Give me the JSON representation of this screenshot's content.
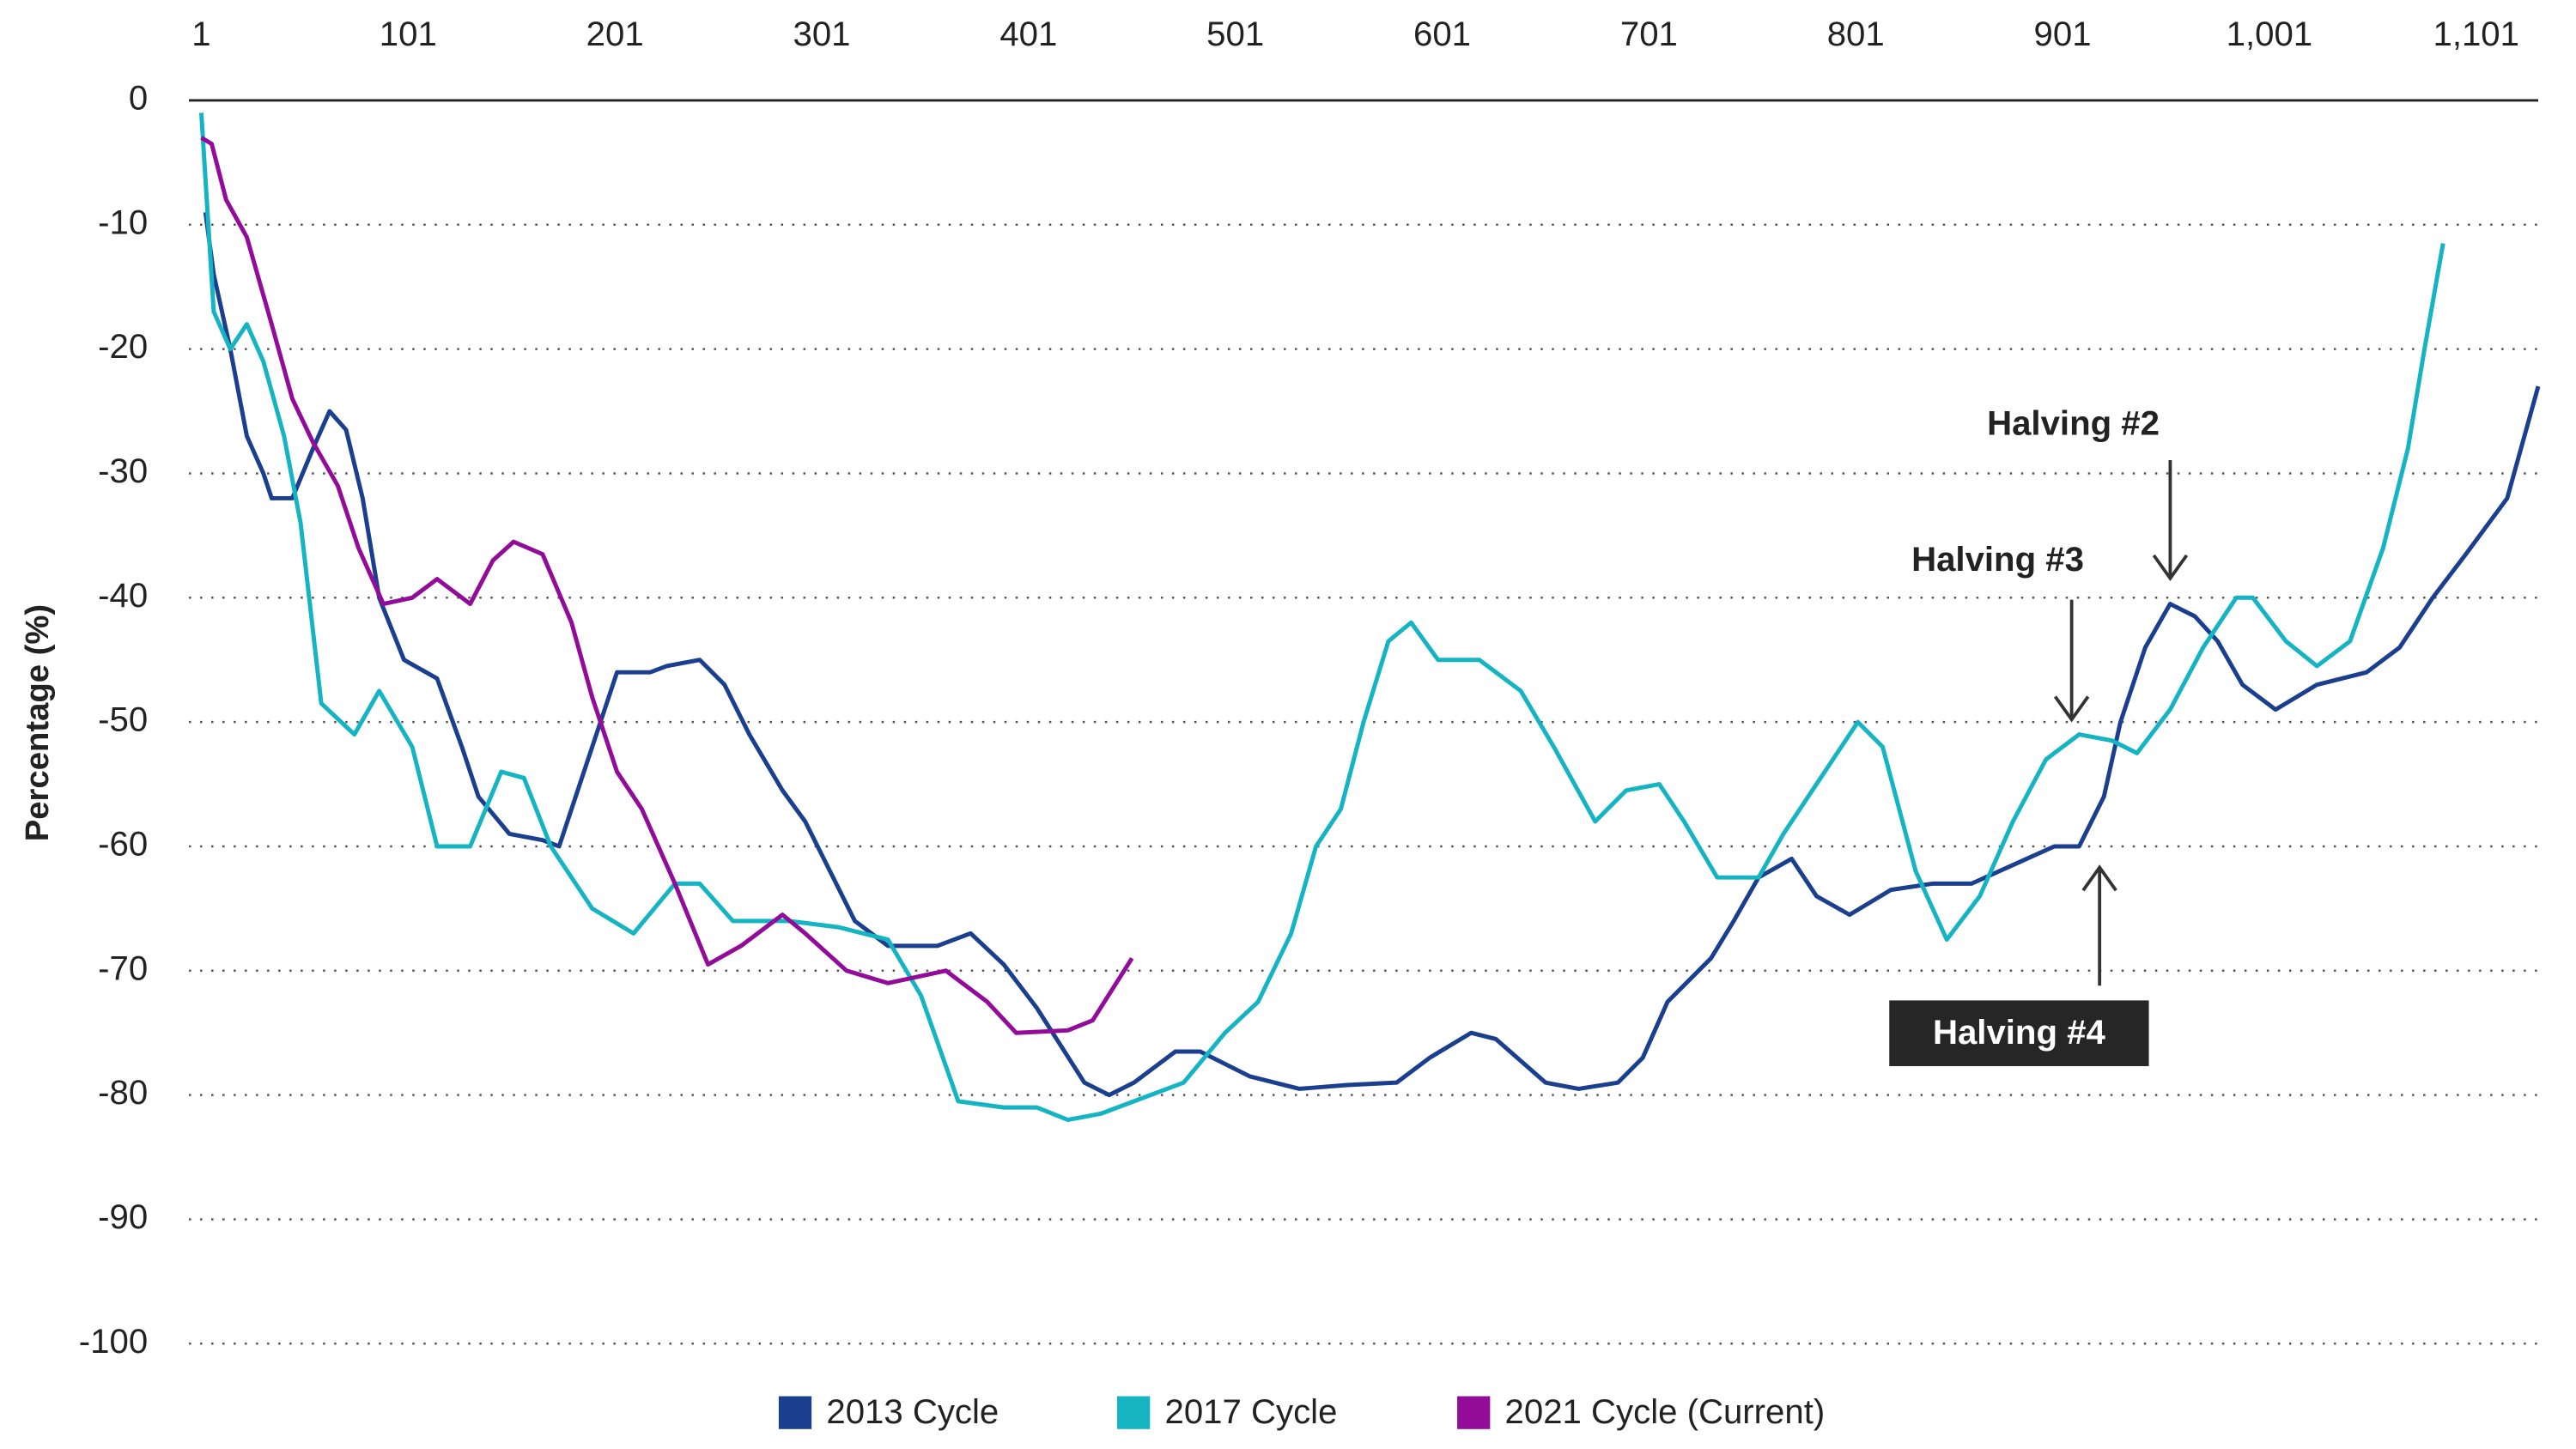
{
  "chart_data": {
    "type": "line",
    "y_label": "Percentage (%)",
    "xlim": [
      -5,
      1131
    ],
    "xticks": [
      1,
      101,
      201,
      301,
      401,
      501,
      601,
      701,
      801,
      901,
      {
        "value": 1001,
        "label": "1,001"
      },
      {
        "value": 1101,
        "label": "1,101"
      }
    ],
    "ylim": [
      -100,
      0
    ],
    "yticks": [
      0,
      -10,
      -20,
      -30,
      -40,
      -50,
      -60,
      -70,
      -80,
      -90,
      -100
    ],
    "grid": true,
    "legend": "bottom",
    "series": [
      {
        "name": "2013 Cycle",
        "color": "#1b3f8f",
        "x": [
          3,
          7,
          15,
          23,
          31,
          35,
          45,
          55,
          63,
          71,
          79,
          87,
          99,
          115,
          127,
          135,
          150,
          166,
          174,
          182,
          194,
          202,
          218,
          226,
          242,
          254,
          266,
          282,
          293,
          305,
          317,
          333,
          357,
          373,
          389,
          405,
          428,
          440,
          452,
          472,
          484,
          508,
          532,
          555,
          579,
          595,
          615,
          627,
          651,
          667,
          686,
          698,
          710,
          731,
          742,
          754,
          770,
          782,
          798,
          818,
          838,
          857,
          877,
          897,
          909,
          921,
          929,
          941,
          953,
          965,
          976,
          988,
          1004,
          1024,
          1048,
          1064,
          1080,
          1096,
          1116,
          1131
        ],
        "values": [
          -9,
          -14,
          -20,
          -27,
          -30,
          -32,
          -32,
          -28,
          -25,
          -26.5,
          -32,
          -40,
          -45,
          -46.5,
          -52,
          -56,
          -59,
          -59.5,
          -60,
          -56,
          -50,
          -46,
          -46,
          -45.5,
          -45,
          -47,
          -51,
          -55.5,
          -58,
          -62,
          -66,
          -68,
          -68,
          -67,
          -69.5,
          -73,
          -79,
          -80,
          -79,
          -76.5,
          -76.5,
          -78.5,
          -79.5,
          -79.2,
          -79,
          -77,
          -75,
          -75.5,
          -79,
          -79.5,
          -79,
          -77,
          -72.5,
          -69,
          -66,
          -62.5,
          -61,
          -64,
          -65.5,
          -63.5,
          -63,
          -63,
          -61.5,
          -60,
          -60,
          -56,
          -50,
          -44,
          -40.5,
          -41.5,
          -43.5,
          -47,
          -49,
          -47,
          -46,
          -44,
          -40,
          -36.5,
          -32,
          -23
        ]
      },
      {
        "name": "2017 Cycle",
        "color": "#14b4c3",
        "x": [
          1,
          7,
          15,
          23,
          31,
          41,
          49,
          59,
          75,
          87,
          103,
          115,
          131,
          146,
          157,
          170,
          190,
          210,
          230,
          242,
          258,
          285,
          309,
          333,
          349,
          367,
          389,
          405,
          420,
          436,
          460,
          476,
          496,
          512,
          528,
          540,
          552,
          563,
          575,
          586,
          599,
          619,
          639,
          655,
          675,
          690,
          706,
          718,
          734,
          754,
          766,
          782,
          802,
          814,
          830,
          845,
          861,
          877,
          893,
          909,
          925,
          937,
          953,
          969,
          985,
          993,
          1009,
          1024,
          1040,
          1056,
          1068,
          1076,
          1085
        ],
        "values": [
          -1,
          -17,
          -20,
          -18,
          -21,
          -27,
          -34,
          -48.5,
          -51,
          -47.5,
          -52,
          -60,
          -60,
          -54,
          -54.5,
          -60,
          -65,
          -67,
          -63,
          -63,
          -66,
          -66,
          -66.5,
          -67.5,
          -72,
          -80.5,
          -81,
          -81,
          -82,
          -81.5,
          -80,
          -79,
          -75,
          -72.5,
          -67,
          -60,
          -57,
          -50,
          -43.5,
          -42,
          -45,
          -45,
          -47.5,
          -52,
          -58,
          -55.5,
          -55,
          -58,
          -62.5,
          -62.5,
          -59,
          -55,
          -50,
          -52,
          -62,
          -67.5,
          -64,
          -58,
          -53,
          -51,
          -51.5,
          -52.5,
          -49,
          -44,
          -40,
          -40,
          -43.5,
          -45.5,
          -43.5,
          -36,
          -28,
          -20,
          -11.5
        ]
      },
      {
        "name": "2021 Cycle (Current)",
        "color": "#920b99",
        "x": [
          1,
          6,
          13,
          23,
          35,
          45,
          55,
          67,
          77,
          89,
          103,
          115,
          131,
          142,
          152,
          166,
          180,
          190,
          202,
          214,
          230,
          246,
          262,
          282,
          293,
          313,
          333,
          361,
          381,
          395,
          420,
          432,
          451
        ],
        "values": [
          -3,
          -3.5,
          -8,
          -11,
          -18,
          -24,
          -27.5,
          -31,
          -36,
          -40.5,
          -40,
          -38.5,
          -40.5,
          -37,
          -35.5,
          -36.5,
          -42,
          -48,
          -54,
          -57,
          -63,
          -69.5,
          -68,
          -65.5,
          -67,
          -70,
          -71,
          -70,
          -72.5,
          -75,
          -74.8,
          -74,
          -69
        ]
      }
    ],
    "annotations": [
      "Halving #2",
      "Halving #3",
      "Halving #4"
    ]
  }
}
